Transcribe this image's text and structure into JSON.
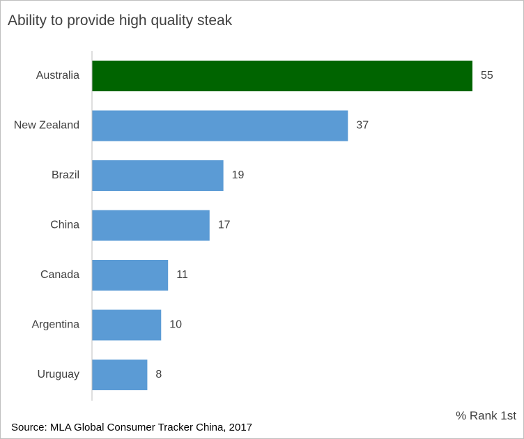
{
  "title": "Ability to provide high quality steak",
  "unit_label": "% Rank 1st",
  "source": "Source: MLA Global Consumer Tracker China, 2017",
  "colors": {
    "highlight": "#006400",
    "bar": "#5b9bd5",
    "axis": "#bfbfbf"
  },
  "chart_data": {
    "type": "bar",
    "orientation": "horizontal",
    "categories": [
      "Australia",
      "New Zealand",
      "Brazil",
      "China",
      "Canada",
      "Argentina",
      "Uruguay"
    ],
    "values": [
      55,
      37,
      19,
      17,
      11,
      10,
      8
    ],
    "highlight_category": "Australia",
    "title": "Ability to provide high quality steak",
    "xlabel": "% Rank 1st",
    "ylabel": "",
    "xlim": [
      0,
      55
    ],
    "grid": false,
    "legend": "none",
    "data_labels": true
  }
}
